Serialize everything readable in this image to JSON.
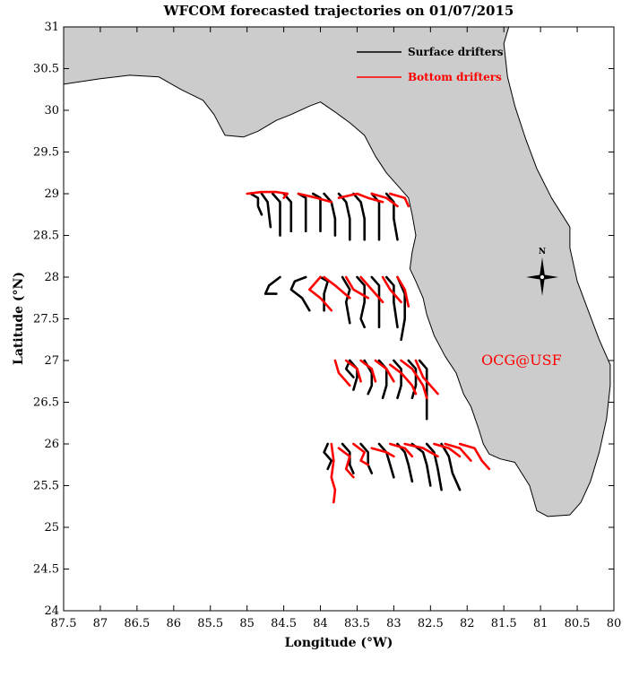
{
  "chart_data": {
    "type": "line",
    "title": "WFCOM forecasted trajectories on 01/07/2015",
    "xlabel": "Longitude (°W)",
    "ylabel": "Latitude (°N)",
    "xlim": [
      87.5,
      80
    ],
    "ylim": [
      24,
      31
    ],
    "x_ticks": [
      87.5,
      87,
      86.5,
      86,
      85.5,
      85,
      84.5,
      84,
      83.5,
      83,
      82.5,
      82,
      81.5,
      81,
      80.5,
      80
    ],
    "y_ticks": [
      24,
      24.5,
      25,
      25.5,
      26,
      26.5,
      27,
      27.5,
      28,
      28.5,
      29,
      29.5,
      30,
      30.5,
      31
    ],
    "land_color": "#cccccc",
    "legend_position": "top-right",
    "credit_text": "OCG@USF",
    "credit_color": "#ff0000",
    "compass_label": "N",
    "series": [
      {
        "name": "Surface drifters",
        "color": "#000000",
        "tracks": [
          [
            [
              84.95,
              29.0
            ],
            [
              84.85,
              28.95
            ],
            [
              84.85,
              28.85
            ],
            [
              84.8,
              28.75
            ]
          ],
          [
            [
              84.8,
              29.0
            ],
            [
              84.72,
              28.9
            ],
            [
              84.7,
              28.75
            ],
            [
              84.68,
              28.6
            ]
          ],
          [
            [
              84.65,
              29.0
            ],
            [
              84.55,
              28.9
            ],
            [
              84.55,
              28.7
            ],
            [
              84.55,
              28.5
            ]
          ],
          [
            [
              84.5,
              29.0
            ],
            [
              84.4,
              28.9
            ],
            [
              84.4,
              28.7
            ],
            [
              84.4,
              28.55
            ]
          ],
          [
            [
              84.3,
              29.0
            ],
            [
              84.2,
              28.95
            ],
            [
              84.2,
              28.75
            ],
            [
              84.2,
              28.55
            ]
          ],
          [
            [
              84.1,
              29.0
            ],
            [
              84.0,
              28.95
            ],
            [
              84.0,
              28.75
            ],
            [
              84.0,
              28.55
            ]
          ],
          [
            [
              83.95,
              29.0
            ],
            [
              83.85,
              28.9
            ],
            [
              83.8,
              28.7
            ],
            [
              83.8,
              28.5
            ]
          ],
          [
            [
              83.75,
              29.0
            ],
            [
              83.65,
              28.9
            ],
            [
              83.6,
              28.7
            ],
            [
              83.6,
              28.45
            ]
          ],
          [
            [
              83.55,
              29.0
            ],
            [
              83.45,
              28.9
            ],
            [
              83.4,
              28.7
            ],
            [
              83.4,
              28.45
            ]
          ],
          [
            [
              83.3,
              29.0
            ],
            [
              83.2,
              28.9
            ],
            [
              83.2,
              28.7
            ],
            [
              83.2,
              28.45
            ]
          ],
          [
            [
              83.1,
              29.0
            ],
            [
              83.0,
              28.9
            ],
            [
              83.0,
              28.7
            ],
            [
              82.95,
              28.45
            ]
          ],
          [
            [
              84.55,
              28.0
            ],
            [
              84.7,
              27.9
            ],
            [
              84.75,
              27.8
            ],
            [
              84.6,
              27.8
            ]
          ],
          [
            [
              84.2,
              28.0
            ],
            [
              84.35,
              27.95
            ],
            [
              84.4,
              27.85
            ],
            [
              84.25,
              27.75
            ],
            [
              84.15,
              27.6
            ]
          ],
          [
            [
              84.0,
              28.0
            ],
            [
              83.9,
              27.95
            ],
            [
              83.95,
              27.8
            ],
            [
              83.95,
              27.6
            ]
          ],
          [
            [
              83.7,
              28.0
            ],
            [
              83.6,
              27.85
            ],
            [
              83.65,
              27.7
            ],
            [
              83.6,
              27.45
            ]
          ],
          [
            [
              83.5,
              28.0
            ],
            [
              83.4,
              27.9
            ],
            [
              83.4,
              27.7
            ],
            [
              83.45,
              27.5
            ],
            [
              83.4,
              27.4
            ]
          ],
          [
            [
              83.3,
              28.0
            ],
            [
              83.2,
              27.9
            ],
            [
              83.2,
              27.7
            ],
            [
              83.2,
              27.4
            ]
          ],
          [
            [
              83.1,
              28.0
            ],
            [
              83.0,
              27.9
            ],
            [
              83.0,
              27.7
            ],
            [
              82.95,
              27.4
            ]
          ],
          [
            [
              82.95,
              28.0
            ],
            [
              82.85,
              27.8
            ],
            [
              82.85,
              27.5
            ],
            [
              82.9,
              27.25
            ]
          ],
          [
            [
              83.55,
              26.8
            ],
            [
              83.65,
              26.9
            ],
            [
              83.6,
              27.0
            ]
          ],
          [
            [
              83.6,
              27.0
            ],
            [
              83.5,
              26.9
            ],
            [
              83.5,
              26.8
            ],
            [
              83.55,
              26.65
            ]
          ],
          [
            [
              83.4,
              27.0
            ],
            [
              83.3,
              26.85
            ],
            [
              83.3,
              26.7
            ],
            [
              83.35,
              26.6
            ]
          ],
          [
            [
              83.2,
              27.0
            ],
            [
              83.1,
              26.9
            ],
            [
              83.1,
              26.7
            ],
            [
              83.15,
              26.55
            ]
          ],
          [
            [
              83.0,
              27.0
            ],
            [
              82.9,
              26.9
            ],
            [
              82.9,
              26.7
            ],
            [
              82.95,
              26.55
            ]
          ],
          [
            [
              82.8,
              27.0
            ],
            [
              82.7,
              26.9
            ],
            [
              82.7,
              26.7
            ],
            [
              82.75,
              26.55
            ]
          ],
          [
            [
              82.65,
              27.0
            ],
            [
              82.55,
              26.9
            ],
            [
              82.55,
              26.7
            ],
            [
              82.55,
              26.3
            ]
          ],
          [
            [
              83.9,
              26.0
            ],
            [
              83.95,
              25.9
            ],
            [
              83.85,
              25.8
            ],
            [
              83.9,
              25.7
            ]
          ],
          [
            [
              83.7,
              26.0
            ],
            [
              83.6,
              25.9
            ],
            [
              83.6,
              25.75
            ],
            [
              83.55,
              25.65
            ]
          ],
          [
            [
              83.45,
              26.0
            ],
            [
              83.35,
              25.9
            ],
            [
              83.35,
              25.75
            ],
            [
              83.3,
              25.65
            ]
          ],
          [
            [
              83.2,
              26.0
            ],
            [
              83.1,
              25.9
            ],
            [
              83.05,
              25.75
            ],
            [
              83.0,
              25.6
            ]
          ],
          [
            [
              82.95,
              26.0
            ],
            [
              82.85,
              25.9
            ],
            [
              82.8,
              25.75
            ],
            [
              82.75,
              25.55
            ]
          ],
          [
            [
              82.75,
              26.0
            ],
            [
              82.6,
              25.9
            ],
            [
              82.55,
              25.75
            ],
            [
              82.5,
              25.5
            ]
          ],
          [
            [
              82.55,
              26.0
            ],
            [
              82.45,
              25.9
            ],
            [
              82.4,
              25.7
            ],
            [
              82.35,
              25.45
            ]
          ],
          [
            [
              82.35,
              26.0
            ],
            [
              82.25,
              25.85
            ],
            [
              82.2,
              25.65
            ],
            [
              82.1,
              25.45
            ]
          ]
        ]
      },
      {
        "name": "Bottom drifters",
        "color": "#ff0000",
        "tracks": [
          [
            [
              85.0,
              29.0
            ],
            [
              84.8,
              29.02
            ],
            [
              84.6,
              29.02
            ],
            [
              84.45,
              29.0
            ],
            [
              84.5,
              28.95
            ]
          ],
          [
            [
              84.3,
              29.0
            ],
            [
              84.05,
              28.95
            ],
            [
              83.85,
              28.9
            ]
          ],
          [
            [
              83.75,
              28.95
            ],
            [
              83.5,
              29.0
            ],
            [
              83.35,
              28.95
            ],
            [
              83.15,
              28.9
            ]
          ],
          [
            [
              83.3,
              29.0
            ],
            [
              83.1,
              28.95
            ],
            [
              82.95,
              28.85
            ]
          ],
          [
            [
              83.05,
              29.0
            ],
            [
              82.85,
              28.95
            ],
            [
              82.8,
              28.85
            ]
          ],
          [
            [
              84.0,
              28.0
            ],
            [
              84.15,
              27.85
            ],
            [
              84.0,
              27.75
            ],
            [
              83.85,
              27.6
            ]
          ],
          [
            [
              83.95,
              28.0
            ],
            [
              83.8,
              27.9
            ],
            [
              83.6,
              27.75
            ]
          ],
          [
            [
              83.65,
              28.0
            ],
            [
              83.55,
              27.85
            ],
            [
              83.35,
              27.75
            ]
          ],
          [
            [
              83.45,
              28.0
            ],
            [
              83.3,
              27.85
            ],
            [
              83.15,
              27.7
            ]
          ],
          [
            [
              83.15,
              28.0
            ],
            [
              83.05,
              27.85
            ],
            [
              82.9,
              27.7
            ]
          ],
          [
            [
              82.95,
              28.0
            ],
            [
              82.85,
              27.85
            ],
            [
              82.8,
              27.65
            ]
          ],
          [
            [
              83.8,
              27.0
            ],
            [
              83.75,
              26.85
            ],
            [
              83.6,
              26.7
            ]
          ],
          [
            [
              83.65,
              27.0
            ],
            [
              83.5,
              26.9
            ],
            [
              83.45,
              26.75
            ]
          ],
          [
            [
              83.45,
              27.0
            ],
            [
              83.3,
              26.9
            ],
            [
              83.25,
              26.75
            ]
          ],
          [
            [
              83.25,
              27.0
            ],
            [
              83.1,
              26.9
            ],
            [
              83.0,
              26.75
            ]
          ],
          [
            [
              83.05,
              26.95
            ],
            [
              82.9,
              26.85
            ],
            [
              82.75,
              26.7
            ],
            [
              82.7,
              26.6
            ]
          ],
          [
            [
              82.9,
              27.0
            ],
            [
              82.75,
              26.9
            ],
            [
              82.6,
              26.7
            ],
            [
              82.55,
              26.55
            ]
          ],
          [
            [
              82.7,
              27.0
            ],
            [
              82.6,
              26.8
            ],
            [
              82.4,
              26.6
            ]
          ],
          [
            [
              83.85,
              26.0
            ],
            [
              83.82,
              25.8
            ],
            [
              83.85,
              25.6
            ],
            [
              83.8,
              25.45
            ],
            [
              83.82,
              25.3
            ]
          ],
          [
            [
              83.75,
              25.95
            ],
            [
              83.6,
              25.85
            ],
            [
              83.65,
              25.7
            ],
            [
              83.55,
              25.6
            ]
          ],
          [
            [
              83.55,
              26.0
            ],
            [
              83.4,
              25.9
            ],
            [
              83.45,
              25.8
            ],
            [
              83.35,
              25.75
            ]
          ],
          [
            [
              83.3,
              25.95
            ],
            [
              83.1,
              25.9
            ],
            [
              83.0,
              25.85
            ]
          ],
          [
            [
              83.05,
              26.0
            ],
            [
              82.85,
              25.95
            ],
            [
              82.75,
              25.85
            ]
          ],
          [
            [
              82.85,
              26.0
            ],
            [
              82.6,
              25.95
            ],
            [
              82.4,
              25.85
            ]
          ],
          [
            [
              82.45,
              26.0
            ],
            [
              82.25,
              25.95
            ],
            [
              82.1,
              25.85
            ]
          ],
          [
            [
              82.3,
              26.0
            ],
            [
              82.1,
              25.95
            ],
            [
              81.95,
              25.8
            ]
          ],
          [
            [
              82.1,
              26.0
            ],
            [
              81.9,
              25.95
            ],
            [
              81.8,
              25.8
            ],
            [
              81.7,
              25.7
            ]
          ]
        ]
      }
    ]
  }
}
